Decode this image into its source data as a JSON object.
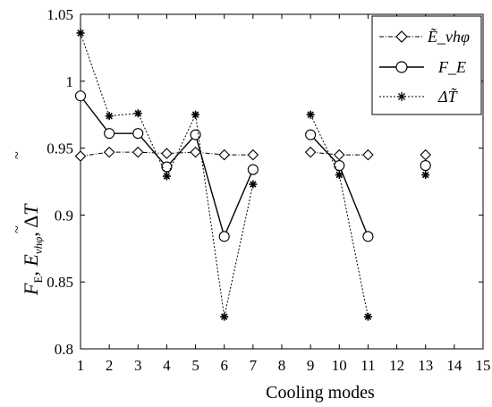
{
  "chart_data": {
    "type": "line",
    "xlabel": "Cooling modes",
    "ylabel": "F_E, Ẽ_vhφ, ΔT̃",
    "ylim": [
      0.8,
      1.05
    ],
    "xlim": [
      1,
      15
    ],
    "x_ticks": [
      1,
      2,
      3,
      4,
      5,
      6,
      7,
      8,
      9,
      10,
      11,
      12,
      13,
      14,
      15
    ],
    "y_ticks": [
      0.8,
      0.85,
      0.9,
      0.95,
      1,
      1.05
    ],
    "grid": false,
    "legend_position": "top-right",
    "series": [
      {
        "id": "E",
        "name": "Ẽ_vhφ",
        "marker": "diamond",
        "line": "dashdot",
        "segments": [
          [
            [
              1,
              0.944
            ],
            [
              2,
              0.947
            ],
            [
              3,
              0.947
            ],
            [
              4,
              0.946
            ],
            [
              5,
              0.947
            ],
            [
              6,
              0.945
            ],
            [
              7,
              0.945
            ]
          ],
          [
            [
              9,
              0.947
            ],
            [
              10,
              0.945
            ],
            [
              11,
              0.945
            ]
          ],
          [
            [
              13,
              0.945
            ]
          ]
        ]
      },
      {
        "id": "F",
        "name": "F_E",
        "marker": "circle",
        "line": "solid",
        "segments": [
          [
            [
              1,
              0.989
            ],
            [
              2,
              0.961
            ],
            [
              3,
              0.961
            ],
            [
              4,
              0.936
            ],
            [
              5,
              0.96
            ],
            [
              6,
              0.884
            ],
            [
              7,
              0.934
            ]
          ],
          [
            [
              9,
              0.96
            ],
            [
              10,
              0.937
            ],
            [
              11,
              0.884
            ]
          ],
          [
            [
              13,
              0.937
            ]
          ]
        ]
      },
      {
        "id": "T",
        "name": "ΔT̃",
        "marker": "star",
        "line": "dotted",
        "segments": [
          [
            [
              1,
              1.036
            ],
            [
              2,
              0.974
            ],
            [
              3,
              0.976
            ],
            [
              4,
              0.929
            ],
            [
              5,
              0.975
            ],
            [
              6,
              0.824
            ],
            [
              7,
              0.923
            ]
          ],
          [
            [
              9,
              0.975
            ],
            [
              10,
              0.93
            ],
            [
              11,
              0.824
            ]
          ],
          [
            [
              13,
              0.93
            ]
          ]
        ]
      }
    ]
  }
}
